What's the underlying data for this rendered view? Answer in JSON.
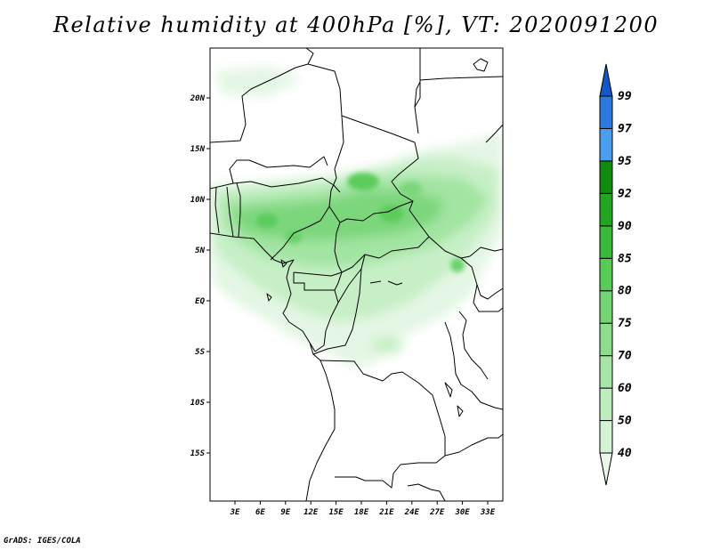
{
  "title": "Relative humidity at 400hPa [%], VT: 2020091200",
  "credit": "GrADS: IGES/COLA",
  "map": {
    "lat_labels": [
      "20N",
      "15N",
      "10N",
      "5N",
      "EQ",
      "5S",
      "10S",
      "15S"
    ],
    "lon_labels": [
      "3E",
      "6E",
      "9E",
      "12E",
      "15E",
      "18E",
      "21E",
      "24E",
      "27E",
      "30E",
      "33E"
    ]
  },
  "colorbar": {
    "levels": [
      "40",
      "50",
      "60",
      "70",
      "75",
      "80",
      "85",
      "90",
      "92",
      "95",
      "97",
      "99"
    ],
    "colors": [
      "#eaf8ea",
      "#d4f2d4",
      "#bdecbd",
      "#a5e5a5",
      "#8ddd8d",
      "#72d572",
      "#56cc56",
      "#3aba3a",
      "#22a622",
      "#0e8c0e",
      "#4a9ef0",
      "#2a7ae0",
      "#1458c8"
    ]
  }
}
